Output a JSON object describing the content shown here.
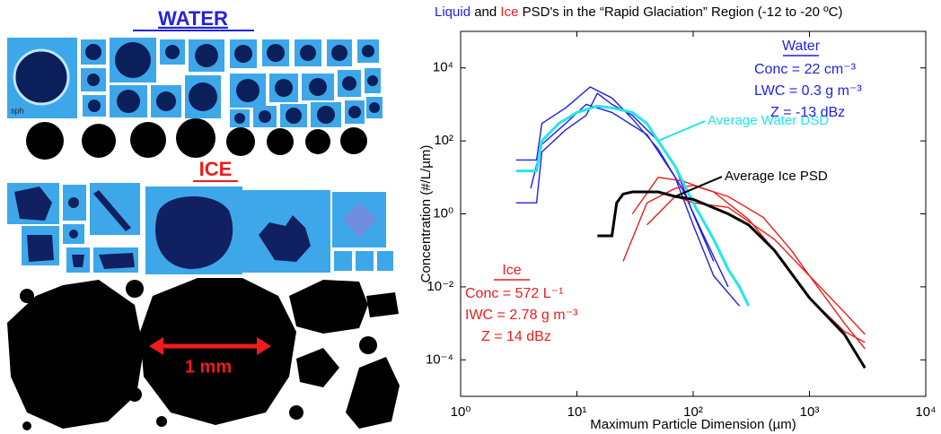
{
  "left_panel": {
    "water_label": "WATER",
    "sph_label": "sph",
    "ice_label": "ICE",
    "scale_label": "1 mm"
  },
  "chart_data": {
    "type": "line",
    "title_parts": [
      "Liquid",
      " and ",
      "Ice",
      " PSD's in the “Rapid Glaciation” Region  (-12 to -20 ºC)"
    ],
    "title_colors": [
      "#1f1fe6",
      "#000000",
      "#ee1c1c",
      "#000000"
    ],
    "xlabel": "Maximum Particle Dimension (µm)",
    "ylabel": "Concentration (#/L/µm)",
    "xscale": "log",
    "yscale": "log",
    "xlim": [
      1,
      10000
    ],
    "ylim": [
      1e-05,
      100000
    ],
    "xticks": [
      {
        "value": 1,
        "label": "10⁰"
      },
      {
        "value": 10,
        "label": "10¹"
      },
      {
        "value": 100,
        "label": "10²"
      },
      {
        "value": 1000,
        "label": "10³"
      },
      {
        "value": 10000,
        "label": "10⁴"
      }
    ],
    "yticks": [
      {
        "value": 0.0001,
        "label": "10⁻⁴"
      },
      {
        "value": 0.01,
        "label": "10⁻²"
      },
      {
        "value": 1,
        "label": "10⁰"
      },
      {
        "value": 100,
        "label": "10²"
      },
      {
        "value": 10000,
        "label": "10⁴"
      }
    ],
    "series": [
      {
        "color": "#1f1fe6",
        "x": [
          3,
          4.5,
          5,
          8,
          12,
          15,
          20,
          30,
          50,
          70,
          100,
          150
        ],
        "values": [
          2,
          2,
          50,
          200,
          500,
          2000,
          1000,
          500,
          100,
          20,
          1,
          0.05
        ]
      },
      {
        "color": "#1f1fe6",
        "x": [
          3,
          4.5,
          5,
          8,
          13,
          20,
          30,
          50,
          80,
          120,
          200
        ],
        "values": [
          30,
          30,
          300,
          800,
          3000,
          1500,
          400,
          60,
          5,
          0.3,
          0.01
        ]
      },
      {
        "color": "#1f1fe6",
        "x": [
          4,
          5,
          8,
          12,
          20,
          40,
          70,
          100,
          150,
          250
        ],
        "values": [
          5,
          80,
          300,
          1000,
          600,
          150,
          10,
          0.5,
          0.02,
          0.003
        ]
      },
      {
        "color": "#ee1c1c",
        "x": [
          25,
          40,
          70,
          100,
          200,
          400,
          700,
          1000,
          2000,
          3000
        ],
        "values": [
          0.05,
          2,
          5,
          6,
          3,
          0.8,
          0.1,
          0.02,
          0.001,
          0.0002
        ]
      },
      {
        "color": "#ee1c1c",
        "x": [
          30,
          50,
          80,
          150,
          300,
          600,
          1000,
          2000,
          3000
        ],
        "values": [
          1,
          10,
          8,
          4,
          0.7,
          0.05,
          0.005,
          0.0006,
          0.0003
        ]
      },
      {
        "color": "#ee1c1c",
        "x": [
          40,
          70,
          100,
          200,
          500,
          1000,
          2000,
          3000
        ],
        "values": [
          0.5,
          3,
          2,
          1.5,
          0.2,
          0.02,
          0.002,
          0.0005
        ]
      },
      {
        "name": "Average Water DSD",
        "color": "#22e6e6",
        "x": [
          3,
          4.5,
          5,
          7,
          10,
          15,
          20,
          30,
          40,
          50,
          70,
          100,
          150,
          200,
          250,
          300
        ],
        "values": [
          15,
          15,
          100,
          300,
          600,
          900,
          800,
          600,
          300,
          100,
          20,
          2,
          0.2,
          0.03,
          0.01,
          0.003
        ]
      },
      {
        "name": "Average Ice PSD",
        "color": "#000000",
        "x": [
          15,
          20,
          22,
          25,
          30,
          50,
          70,
          100,
          200,
          300,
          500,
          1000,
          2000,
          3000
        ],
        "values": [
          0.25,
          0.25,
          2,
          3.5,
          4,
          4,
          3,
          2.5,
          1,
          0.5,
          0.1,
          0.005,
          0.0005,
          6e-05
        ]
      }
    ],
    "water_box": {
      "heading": "Water",
      "lines": [
        "Conc = 22 cm⁻³",
        "LWC = 0.3 g m⁻³",
        "Z  =  -13 dBz"
      ]
    },
    "ice_box": {
      "heading": "Ice",
      "lines": [
        "Conc = 572 L⁻¹",
        "IWC = 2.78 g m⁻³",
        "Z  =  14 dBz"
      ]
    }
  }
}
